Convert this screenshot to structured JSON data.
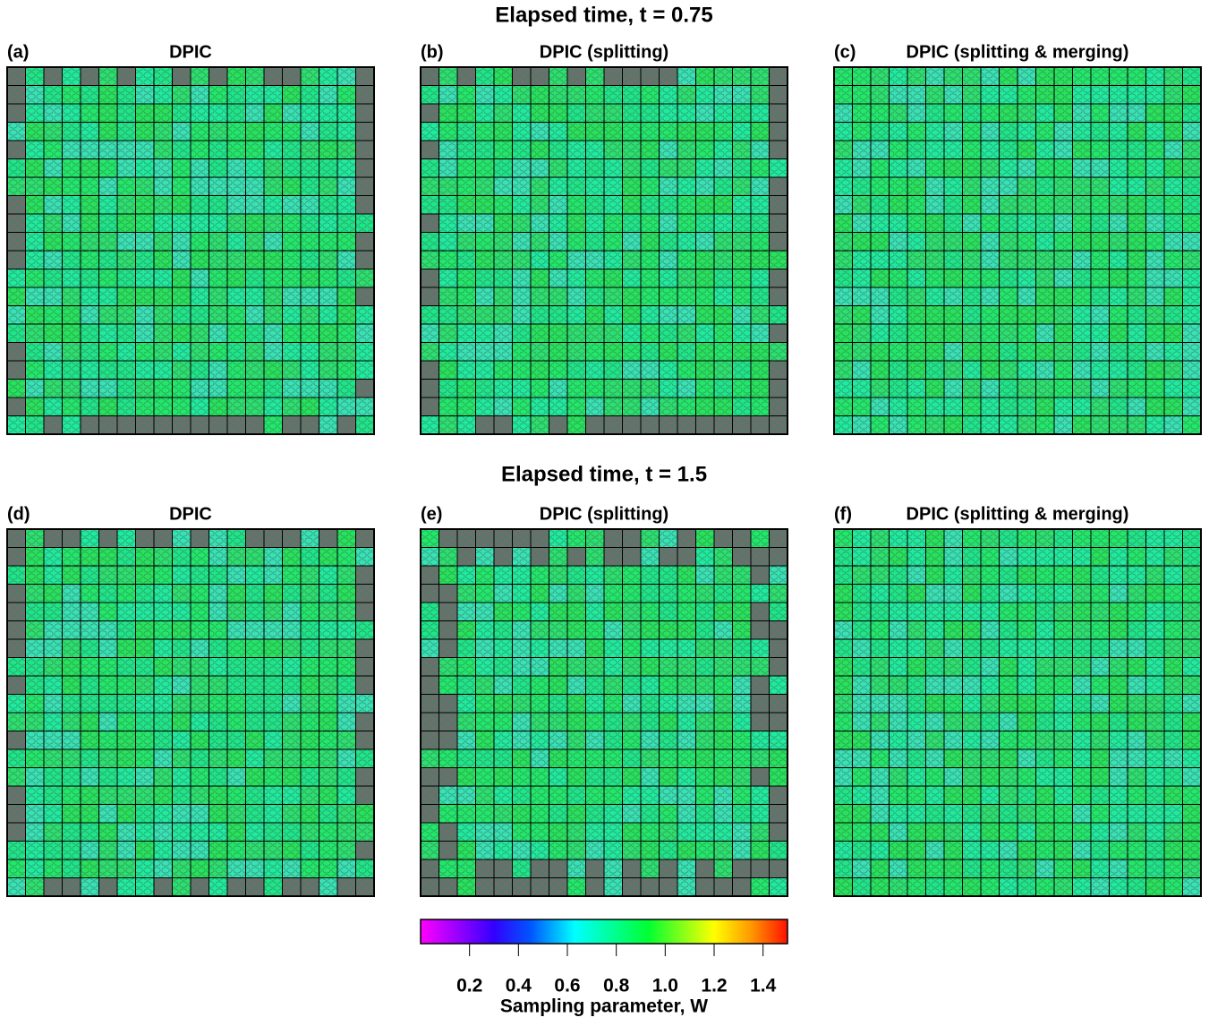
{
  "rows": [
    {
      "title": "Elapsed time, t = 0.75",
      "panels": [
        {
          "label": "(a)",
          "title": "DPIC"
        },
        {
          "label": "(b)",
          "title": "DPIC (splitting)"
        },
        {
          "label": "(c)",
          "title": "DPIC (splitting & merging)"
        }
      ]
    },
    {
      "title": "Elapsed time, t = 1.5",
      "panels": [
        {
          "label": "(d)",
          "title": "DPIC"
        },
        {
          "label": "(e)",
          "title": "DPIC (splitting)"
        },
        {
          "label": "(f)",
          "title": "DPIC (splitting & merging)"
        }
      ]
    }
  ],
  "colorbar": {
    "label": "Sampling parameter, W",
    "range": [
      0,
      1.5
    ],
    "ticks": [
      0.2,
      0.4,
      0.6,
      0.8,
      1.0,
      1.2,
      1.4
    ]
  }
}
